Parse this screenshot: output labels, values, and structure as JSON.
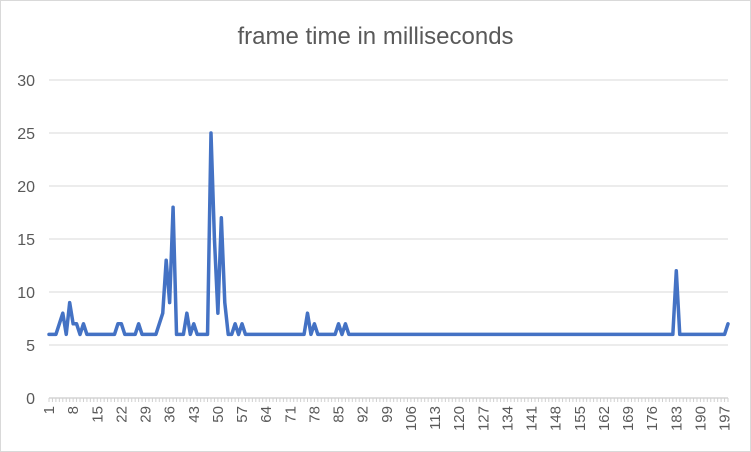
{
  "chart_data": {
    "type": "line",
    "title": "frame time in milliseconds",
    "xlabel": "",
    "ylabel": "",
    "ylim": [
      0,
      30
    ],
    "yticks": [
      0,
      5,
      10,
      15,
      20,
      25,
      30
    ],
    "xticks": [
      "1",
      "8",
      "15",
      "22",
      "29",
      "36",
      "43",
      "50",
      "57",
      "64",
      "71",
      "78",
      "85",
      "92",
      "99",
      "106",
      "113",
      "120",
      "127",
      "134",
      "141",
      "148",
      "155",
      "162",
      "169",
      "176",
      "183",
      "190",
      "197"
    ],
    "grid": "horizontal",
    "legend": "none",
    "color": "#4472c4",
    "series": [
      {
        "points": [
          [
            1,
            6
          ],
          [
            2,
            6
          ],
          [
            3,
            6
          ],
          [
            4,
            7
          ],
          [
            5,
            8
          ],
          [
            6,
            6
          ],
          [
            7,
            9
          ],
          [
            8,
            7
          ],
          [
            9,
            7
          ],
          [
            10,
            6
          ],
          [
            11,
            7
          ],
          [
            12,
            6
          ],
          [
            13,
            6
          ],
          [
            20,
            6
          ],
          [
            21,
            7
          ],
          [
            22,
            7
          ],
          [
            23,
            6
          ],
          [
            26,
            6
          ],
          [
            27,
            7
          ],
          [
            28,
            6
          ],
          [
            32,
            6
          ],
          [
            34,
            8
          ],
          [
            35,
            13
          ],
          [
            36,
            9
          ],
          [
            37,
            18
          ],
          [
            38,
            6
          ],
          [
            40,
            6
          ],
          [
            41,
            8
          ],
          [
            42,
            6
          ],
          [
            43,
            7
          ],
          [
            44,
            6
          ],
          [
            47,
            6
          ],
          [
            48,
            25
          ],
          [
            49,
            15
          ],
          [
            50,
            8
          ],
          [
            51,
            17
          ],
          [
            52,
            9
          ],
          [
            53,
            6
          ],
          [
            54,
            6
          ],
          [
            55,
            7
          ],
          [
            56,
            6
          ],
          [
            57,
            7
          ],
          [
            58,
            6
          ],
          [
            75,
            6
          ],
          [
            76,
            8
          ],
          [
            77,
            6
          ],
          [
            78,
            7
          ],
          [
            79,
            6
          ],
          [
            84,
            6
          ],
          [
            85,
            7
          ],
          [
            86,
            6
          ],
          [
            87,
            7
          ],
          [
            88,
            6
          ],
          [
            182,
            6
          ],
          [
            183,
            12
          ],
          [
            184,
            6
          ],
          [
            197,
            6
          ],
          [
            198,
            7
          ]
        ]
      }
    ]
  }
}
